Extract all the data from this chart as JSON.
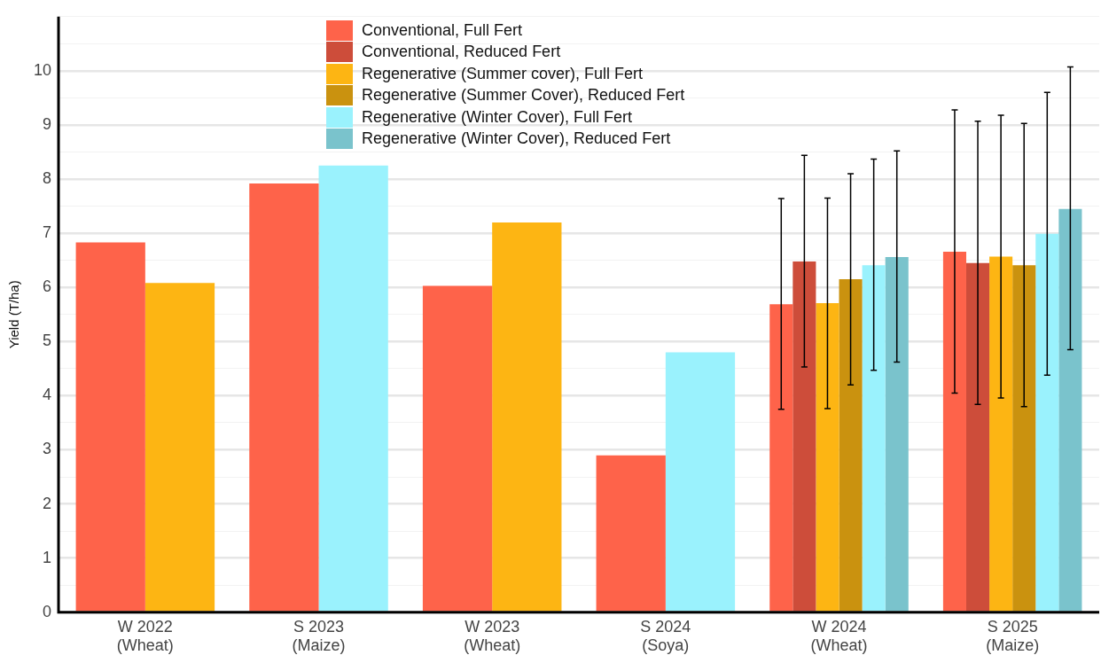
{
  "chart_data": {
    "type": "bar",
    "ylabel": "Yield (T/ha)",
    "categories": [
      "W 2022\n(Wheat)",
      "S 2023\n(Maize)",
      "W 2023\n(Wheat)",
      "S 2024\n(Soya)",
      "W 2024\n(Wheat)",
      "S 2025\n(Maize)"
    ],
    "series": [
      {
        "name": "Conventional, Full Fert",
        "color": "#fe634a",
        "values": [
          6.83,
          7.92,
          6.03,
          2.9,
          5.69,
          6.66
        ],
        "errors": [
          null,
          null,
          null,
          null,
          [
            3.75,
            7.64
          ],
          [
            4.05,
            9.28
          ]
        ]
      },
      {
        "name": "Conventional, Reduced Fert",
        "color": "#cd4d3a",
        "values": [
          null,
          null,
          null,
          null,
          6.48,
          6.45
        ],
        "errors": [
          null,
          null,
          null,
          null,
          [
            4.53,
            8.44
          ],
          [
            3.84,
            9.07
          ]
        ]
      },
      {
        "name": "Regenerative (Summer cover), Full Fert",
        "color": "#fdb513",
        "values": [
          6.08,
          null,
          7.2,
          null,
          5.71,
          6.57
        ],
        "errors": [
          null,
          null,
          null,
          null,
          [
            3.76,
            7.65
          ],
          [
            3.96,
            9.18
          ]
        ]
      },
      {
        "name": "Regenerative (Summer Cover), Reduced Fert",
        "color": "#ca920f",
        "values": [
          null,
          null,
          null,
          null,
          6.15,
          6.41
        ],
        "errors": [
          null,
          null,
          null,
          null,
          [
            4.2,
            8.1
          ],
          [
            3.8,
            9.03
          ]
        ]
      },
      {
        "name": "Regenerative (Winter Cover), Full Fert",
        "color": "#9af2fd",
        "values": [
          null,
          8.25,
          null,
          4.8,
          6.41,
          6.99
        ],
        "errors": [
          null,
          null,
          null,
          null,
          [
            4.47,
            8.37
          ],
          [
            4.38,
            9.6
          ]
        ]
      },
      {
        "name": "Regenerative (Winter Cover), Reduced Fert",
        "color": "#7ac3cc",
        "values": [
          null,
          null,
          null,
          null,
          6.56,
          7.45
        ],
        "errors": [
          null,
          null,
          null,
          null,
          [
            4.62,
            8.52
          ],
          [
            4.85,
            10.07
          ]
        ]
      }
    ],
    "ylim": [
      0,
      11
    ],
    "yticks": [
      0,
      {
        "value": 0.5,
        "label": null
      },
      1,
      {
        "value": 1.5,
        "label": null
      },
      2,
      {
        "value": 2.5,
        "label": null
      },
      3,
      {
        "value": 3.5,
        "label": null
      },
      4,
      {
        "value": 4.5,
        "label": null
      },
      5,
      {
        "value": 5.5,
        "label": null
      },
      6,
      {
        "value": 6.5,
        "label": null
      },
      7,
      {
        "value": 7.5,
        "label": null
      },
      8,
      {
        "value": 8.5,
        "label": null
      },
      9,
      {
        "value": 9.5,
        "label": null
      },
      10,
      {
        "value": 10.5,
        "label": null
      },
      {
        "value": 11,
        "label": null
      }
    ],
    "grid": "y",
    "legend": "top"
  }
}
